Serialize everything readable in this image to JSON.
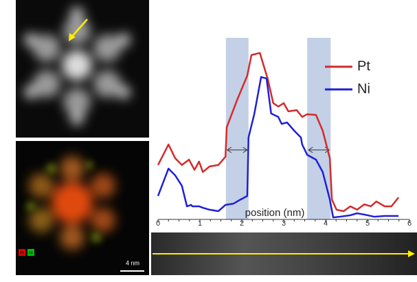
{
  "chart_data": {
    "type": "line",
    "xlabel": "position (nm)",
    "xlim": [
      0,
      6
    ],
    "xticks": [
      0,
      1,
      2,
      3,
      4,
      5,
      6
    ],
    "ylim": [
      0,
      100
    ],
    "highlight_bands": [
      [
        1.62,
        2.16
      ],
      [
        3.56,
        4.12
      ]
    ],
    "series": [
      {
        "name": "Pt",
        "color": "#d42a2a",
        "x": [
          0.0,
          0.25,
          0.41,
          0.57,
          0.74,
          0.87,
          0.98,
          1.07,
          1.23,
          1.44,
          1.61,
          1.64,
          1.89,
          2.13,
          2.23,
          2.43,
          2.62,
          2.75,
          2.87,
          3.0,
          3.11,
          3.31,
          3.44,
          3.56,
          3.77,
          3.93,
          4.1,
          4.15,
          4.26,
          4.43,
          4.59,
          4.75,
          4.92,
          5.08,
          5.21,
          5.41,
          5.57,
          5.74
        ],
        "values": [
          30.8,
          42.3,
          34.6,
          30.8,
          33.8,
          28.1,
          32.7,
          26.9,
          30.0,
          30.8,
          35.4,
          51.9,
          67.3,
          80.8,
          92.3,
          93.5,
          78.8,
          65.4,
          63.5,
          65.4,
          60.8,
          61.5,
          57.7,
          59.2,
          58.8,
          50.0,
          34.6,
          11.5,
          5.8,
          5.0,
          7.7,
          5.8,
          8.8,
          7.7,
          10.4,
          7.7,
          7.7,
          12.7
        ]
      },
      {
        "name": "Ni",
        "color": "#1f1fd6",
        "x": [
          0.0,
          0.25,
          0.41,
          0.57,
          0.69,
          0.79,
          0.82,
          0.98,
          1.07,
          1.23,
          1.44,
          1.61,
          1.8,
          1.97,
          2.13,
          2.16,
          2.3,
          2.46,
          2.59,
          2.7,
          2.87,
          2.95,
          3.08,
          3.25,
          3.41,
          3.44,
          3.56,
          3.77,
          3.93,
          4.1,
          4.18,
          4.34,
          4.59,
          4.75,
          4.92,
          5.16,
          5.41,
          5.74
        ],
        "values": [
          13.5,
          28.8,
          25.0,
          19.2,
          7.7,
          8.5,
          7.7,
          7.7,
          6.9,
          5.8,
          5.0,
          8.5,
          9.2,
          11.5,
          13.5,
          46.2,
          59.6,
          80.0,
          79.2,
          59.6,
          57.7,
          53.8,
          54.6,
          50.0,
          46.2,
          42.3,
          36.5,
          33.8,
          26.9,
          11.5,
          1.5,
          1.9,
          2.7,
          3.8,
          3.1,
          1.9,
          2.3,
          2.3
        ]
      }
    ]
  },
  "panels": {
    "channel_labels": [
      "Pt",
      "Ni"
    ],
    "scale_bar": "4 nm"
  }
}
